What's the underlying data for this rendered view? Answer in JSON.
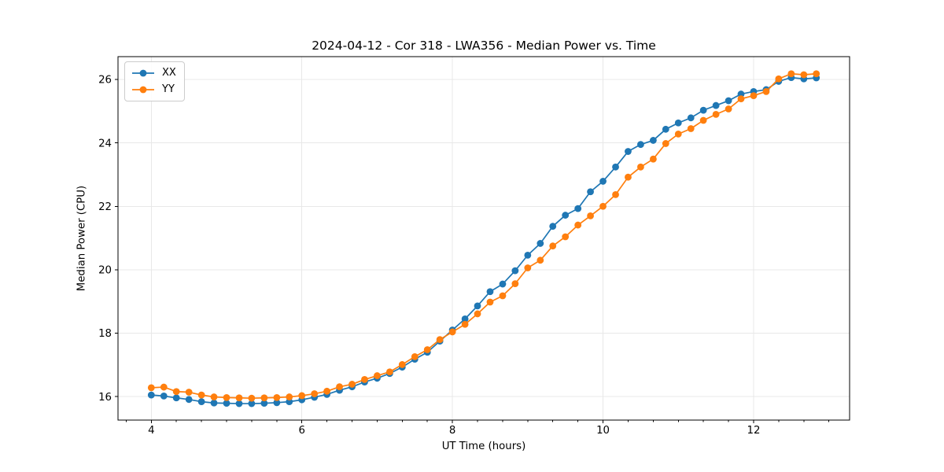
{
  "chart_data": {
    "type": "line",
    "title": "2024-04-12 - Cor 318 - LWA356 - Median Power vs. Time",
    "xlabel": "UT Time (hours)",
    "ylabel": "Median Power (CPU)",
    "xlim": [
      3.558,
      13.275
    ],
    "ylim": [
      15.26,
      26.72
    ],
    "xticks": [
      4,
      6,
      8,
      10,
      12
    ],
    "yticks": [
      16,
      18,
      20,
      22,
      24,
      26
    ],
    "x_minor_step": 0.33333,
    "grid": true,
    "grid_color": "#e8e8e8",
    "legend_position": "upper left",
    "x": [
      4.0,
      4.167,
      4.333,
      4.5,
      4.667,
      4.833,
      5.0,
      5.167,
      5.333,
      5.5,
      5.667,
      5.833,
      6.0,
      6.167,
      6.333,
      6.5,
      6.667,
      6.833,
      7.0,
      7.167,
      7.333,
      7.5,
      7.667,
      7.833,
      8.0,
      8.167,
      8.333,
      8.5,
      8.667,
      8.833,
      9.0,
      9.167,
      9.333,
      9.5,
      9.667,
      9.833,
      10.0,
      10.167,
      10.333,
      10.5,
      10.667,
      10.833,
      11.0,
      11.167,
      11.333,
      11.5,
      11.667,
      11.833,
      12.0,
      12.167,
      12.333,
      12.5,
      12.667,
      12.833
    ],
    "series": [
      {
        "name": "XX",
        "color": "#1f77b4",
        "values": [
          16.05,
          16.02,
          15.96,
          15.91,
          15.84,
          15.8,
          15.79,
          15.78,
          15.78,
          15.79,
          15.81,
          15.84,
          15.9,
          15.98,
          16.07,
          16.2,
          16.31,
          16.46,
          16.58,
          16.73,
          16.93,
          17.18,
          17.4,
          17.75,
          18.1,
          18.45,
          18.86,
          19.31,
          19.55,
          19.97,
          20.46,
          20.83,
          21.37,
          21.72,
          21.93,
          22.46,
          22.79,
          23.24,
          23.73,
          23.95,
          24.08,
          24.43,
          24.63,
          24.79,
          25.03,
          25.18,
          25.33,
          25.54,
          25.62,
          25.68,
          25.94,
          26.06,
          26.02,
          26.05
        ]
      },
      {
        "name": "YY",
        "color": "#ff7f0e",
        "values": [
          16.28,
          16.3,
          16.16,
          16.14,
          16.05,
          15.99,
          15.97,
          15.96,
          15.95,
          15.96,
          15.97,
          15.99,
          16.03,
          16.09,
          16.17,
          16.31,
          16.39,
          16.54,
          16.66,
          16.78,
          17.01,
          17.26,
          17.48,
          17.8,
          18.04,
          18.28,
          18.61,
          18.98,
          19.18,
          19.56,
          20.06,
          20.3,
          20.75,
          21.04,
          21.41,
          21.7,
          22.0,
          22.37,
          22.92,
          23.24,
          23.49,
          23.98,
          24.28,
          24.45,
          24.71,
          24.9,
          25.07,
          25.39,
          25.49,
          25.62,
          26.02,
          26.18,
          26.15,
          26.18
        ]
      }
    ]
  }
}
